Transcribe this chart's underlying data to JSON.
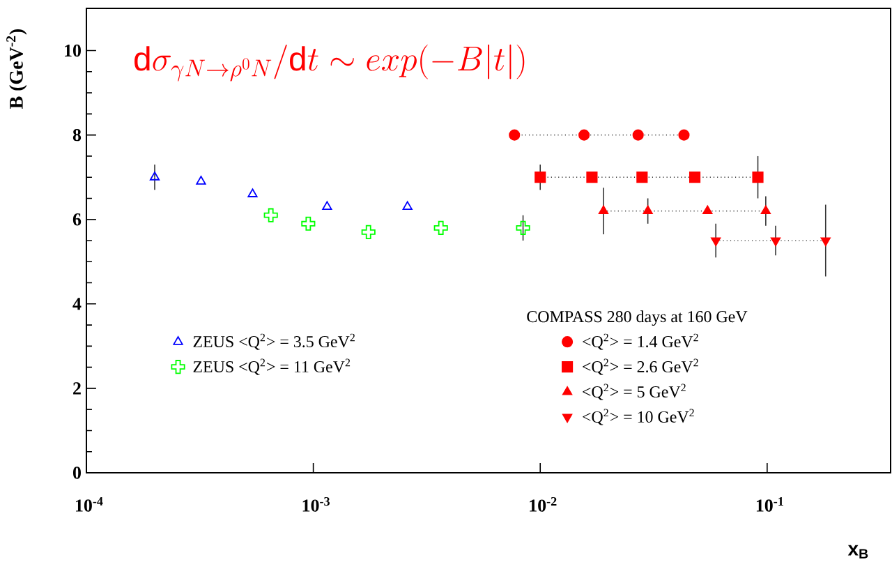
{
  "chart_data": {
    "type": "scatter",
    "title": "\\mathrm{d}\\sigma_{\\gamma N\\rightarrow\\rho^0 N}/\\mathrm{d}t\\sim exp(-B|t|)",
    "xlabel": "x$_{B}$",
    "ylabel": "B (GeV$^{-2}$)",
    "legend_title": "COMPASS  280 days at 160 GeV",
    "log": "x",
    "legend": "bottom",
    "xlim": [
      0.0001,
      0.35
    ],
    "ylim": [
      0,
      11
    ],
    "xticks": [
      {
        "value": 0.0001,
        "label": "10$^{-4}$"
      },
      {
        "value": 0.001,
        "label": "10$^{-3}$"
      },
      {
        "value": 0.01,
        "label": "10$^{-2}$"
      },
      {
        "value": 0.1,
        "label": "10$^{-1}$"
      }
    ],
    "yticks": [
      0,
      2,
      4,
      6,
      8,
      10
    ],
    "series": [
      {
        "name": "ZEUS  <Q$^{2}$> = 3.5 GeV$^{2}$",
        "color": "#0000ff",
        "marker": "triangle open",
        "x": [
          0.0002,
          0.00032,
          0.00054,
          0.00115,
          0.0026
        ],
        "values": [
          7.0,
          6.9,
          6.6,
          6.3,
          6.3
        ],
        "errors": [
          0.3,
          null,
          null,
          null,
          null
        ]
      },
      {
        "name": "ZEUS  <Q$^{2}$> = 11 GeV$^{2}$",
        "color": "#00ff00",
        "marker": "cross",
        "x": [
          0.00065,
          0.00095,
          0.00175,
          0.00365,
          0.0084
        ],
        "values": [
          6.1,
          5.9,
          5.7,
          5.8,
          5.8
        ],
        "errors": [
          null,
          null,
          null,
          null,
          0.3
        ]
      },
      {
        "name": "<Q$^{2}$> = 1.4 GeV$^{2}$",
        "type": "line",
        "color": "#ff0000",
        "marker": "circle",
        "line_style": "dotted",
        "x": [
          0.0077,
          0.0156,
          0.027,
          0.043
        ],
        "values": [
          8,
          8,
          8,
          8
        ]
      },
      {
        "name": "<Q$^{2}$> = 2.6 GeV$^{2}$",
        "type": "line",
        "color": "#ff0000",
        "marker": "square",
        "line_style": "dotted",
        "x": [
          0.01,
          0.0169,
          0.0281,
          0.048,
          0.091
        ],
        "values": [
          7,
          7,
          7,
          7,
          7
        ],
        "errors": [
          0.3,
          null,
          null,
          null,
          0.5
        ]
      },
      {
        "name": "<Q$^{2}$> = 5 GeV$^{2}$",
        "type": "line",
        "color": "#ff0000",
        "marker": "triangle",
        "line_style": "dotted",
        "x": [
          0.019,
          0.0298,
          0.0546,
          0.0986
        ],
        "values": [
          6.2,
          6.2,
          6.2,
          6.2
        ],
        "errors": [
          0.55,
          0.3,
          null,
          0.35
        ]
      },
      {
        "name": "<Q$^{2}$> = 10 GeV$^{2}$",
        "type": "line",
        "color": "#ff0000",
        "marker": "triangle down",
        "line_style": "dotted",
        "x": [
          0.0594,
          0.109,
          0.181
        ],
        "values": [
          5.5,
          5.5,
          5.5
        ],
        "errors": [
          0.4,
          0.35,
          0.85
        ]
      }
    ]
  }
}
